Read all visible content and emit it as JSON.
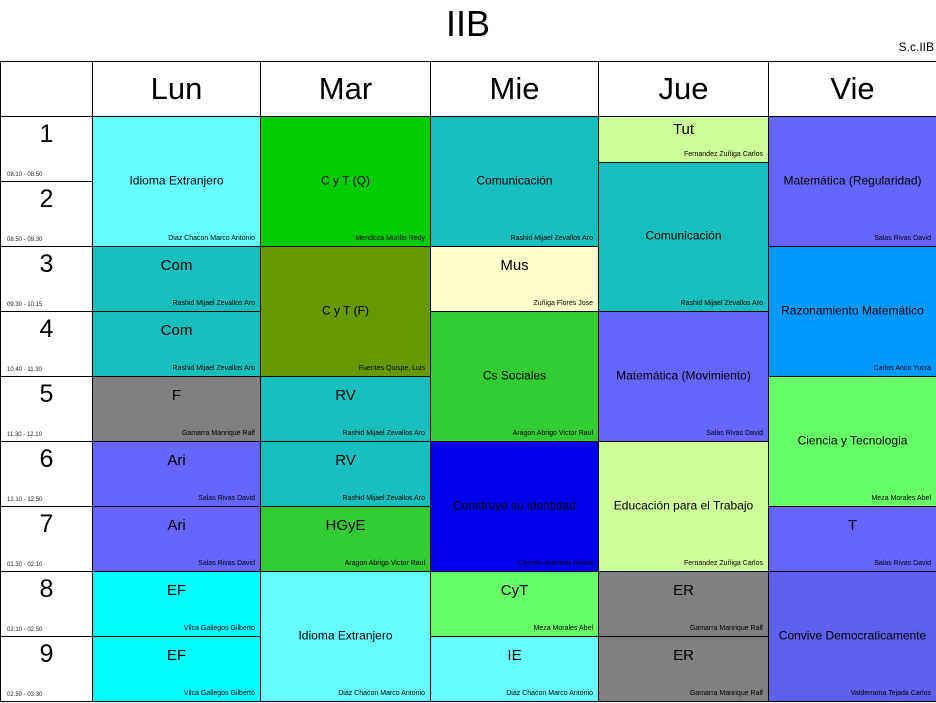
{
  "title": "IIB",
  "code": "S.c.IIB",
  "days": [
    "Lun",
    "Mar",
    "Mie",
    "Jue",
    "Vie"
  ],
  "periods": [
    {
      "num": "1",
      "time": "08.10 - 08.50"
    },
    {
      "num": "2",
      "time": "08.50 - 09.30"
    },
    {
      "num": "3",
      "time": "09.30 - 10.15"
    },
    {
      "num": "4",
      "time": "10.40 - 11.30"
    },
    {
      "num": "5",
      "time": "11.30 - 12.10"
    },
    {
      "num": "6",
      "time": "12.10 - 12.50"
    },
    {
      "num": "7",
      "time": "01.30 - 02.10"
    },
    {
      "num": "8",
      "time": "02.10 - 02.50"
    },
    {
      "num": "9",
      "time": "02.50 - 03.30"
    }
  ],
  "classes": [
    {
      "day": 0,
      "start": 0,
      "span": 2,
      "subject": "Idioma Extranjero",
      "teacher": "Diaz Chacon Marco Antonio",
      "color": "#66ffff"
    },
    {
      "day": 0,
      "start": 2,
      "span": 1,
      "subject": "Com",
      "teacher": "Rashid Mijael Zevallos Aro",
      "color": "#17bfbf"
    },
    {
      "day": 0,
      "start": 3,
      "span": 1,
      "subject": "Com",
      "teacher": "Rashid Mijael Zevallos Aro",
      "color": "#17bfbf"
    },
    {
      "day": 0,
      "start": 4,
      "span": 1,
      "subject": "F",
      "teacher": "Gamarra Manrique Ralf",
      "color": "#808080"
    },
    {
      "day": 0,
      "start": 5,
      "span": 1,
      "subject": "Ari",
      "teacher": "Salas Rivas David",
      "color": "#6666ff"
    },
    {
      "day": 0,
      "start": 6,
      "span": 1,
      "subject": "Ari",
      "teacher": "Salas Rivas David",
      "color": "#6666ff"
    },
    {
      "day": 0,
      "start": 7,
      "span": 1,
      "subject": "EF",
      "teacher": "Vilca Gallegos Gilberto",
      "color": "#00ffff"
    },
    {
      "day": 0,
      "start": 8,
      "span": 1,
      "subject": "EF",
      "teacher": "Vilca Gallegos Gilberto",
      "color": "#00ffff"
    },
    {
      "day": 1,
      "start": 0,
      "span": 2,
      "subject": "C y T (Q)",
      "teacher": "Mendoza Murillo Redy",
      "color": "#00cc00"
    },
    {
      "day": 1,
      "start": 2,
      "span": 2,
      "subject": "C y T (F)",
      "teacher": "Fuentes Quispe, Luis",
      "color": "#669900"
    },
    {
      "day": 1,
      "start": 4,
      "span": 1,
      "subject": "RV",
      "teacher": "Rashid Mijael Zevallos Aro",
      "color": "#17bfbf"
    },
    {
      "day": 1,
      "start": 5,
      "span": 1,
      "subject": "RV",
      "teacher": "Rashid Mijael Zevallos Aro",
      "color": "#17bfbf"
    },
    {
      "day": 1,
      "start": 6,
      "span": 1,
      "subject": "HGyE",
      "teacher": "Aragon Abrigo Victor Raul",
      "color": "#33cc33"
    },
    {
      "day": 1,
      "start": 7,
      "span": 2,
      "subject": "Idioma Extranjero",
      "teacher": "Diaz Chacon Marco Antonio",
      "color": "#66ffff"
    },
    {
      "day": 2,
      "start": 0,
      "span": 2,
      "subject": "Comunicación",
      "teacher": "Rashid Mijael Zevallos Aro",
      "color": "#17bfbf"
    },
    {
      "day": 2,
      "start": 2,
      "span": 1,
      "subject": "Mus",
      "teacher": "Zuñiga Flores Jose",
      "color": "#ffffcc"
    },
    {
      "day": 2,
      "start": 3,
      "span": 2,
      "subject": "Cs Sociales",
      "teacher": "Aragon Abrigo Victor Raul",
      "color": "#33cc33"
    },
    {
      "day": 2,
      "start": 5,
      "span": 2,
      "subject": "Construye su identidad",
      "teacher": "Carnelo Arambar Rilona",
      "color": "#0000ee"
    },
    {
      "day": 2,
      "start": 7,
      "span": 1,
      "subject": "CyT",
      "teacher": "Meza Morales Abel",
      "color": "#66ff66"
    },
    {
      "day": 2,
      "start": 8,
      "span": 1,
      "subject": "IE",
      "teacher": "Diaz Chacon Marco Antonio",
      "color": "#66ffff"
    },
    {
      "day": 3,
      "start": 0,
      "span": 0.7,
      "subject": "Tut",
      "teacher": "Fernandez Zuñiga Carlos",
      "color": "#ccff99"
    },
    {
      "day": 3,
      "start": 0.7,
      "span": 2.3,
      "subject": "Comunicación",
      "teacher": "Rashid Mijael Zevallos Aro",
      "color": "#17bfbf"
    },
    {
      "day": 3,
      "start": 3,
      "span": 2,
      "subject": "Matemática (Movimiento)",
      "teacher": "Salas Rivas David",
      "color": "#6666ff"
    },
    {
      "day": 3,
      "start": 5,
      "span": 2,
      "subject": "Educación para el Trabajo",
      "teacher": "Fernandez Zuñiga Carlos",
      "color": "#ccff99"
    },
    {
      "day": 3,
      "start": 7,
      "span": 1,
      "subject": "ER",
      "teacher": "Gamarra Manrique Ralf",
      "color": "#808080"
    },
    {
      "day": 3,
      "start": 8,
      "span": 1,
      "subject": "ER",
      "teacher": "Gamarra Manrique Ralf",
      "color": "#808080"
    },
    {
      "day": 4,
      "start": 0,
      "span": 2,
      "subject": "Matemática (Regularidad)",
      "teacher": "Salas Rivas David",
      "color": "#6666ff"
    },
    {
      "day": 4,
      "start": 2,
      "span": 2,
      "subject": "Razonamiento Matemático",
      "teacher": "Carlos Anco Yucra",
      "color": "#0099ff"
    },
    {
      "day": 4,
      "start": 4,
      "span": 2,
      "subject": "Ciencia y Tecnologia",
      "teacher": "Meza Morales Abel",
      "color": "#66ff66"
    },
    {
      "day": 4,
      "start": 6,
      "span": 1,
      "subject": "T",
      "teacher": "Salas Rivas David",
      "color": "#6666ff"
    },
    {
      "day": 4,
      "start": 7,
      "span": 2,
      "subject": "Convive Democraticamente",
      "teacher": "Valderrama Tejada Carlos",
      "color": "#6060ee"
    }
  ]
}
